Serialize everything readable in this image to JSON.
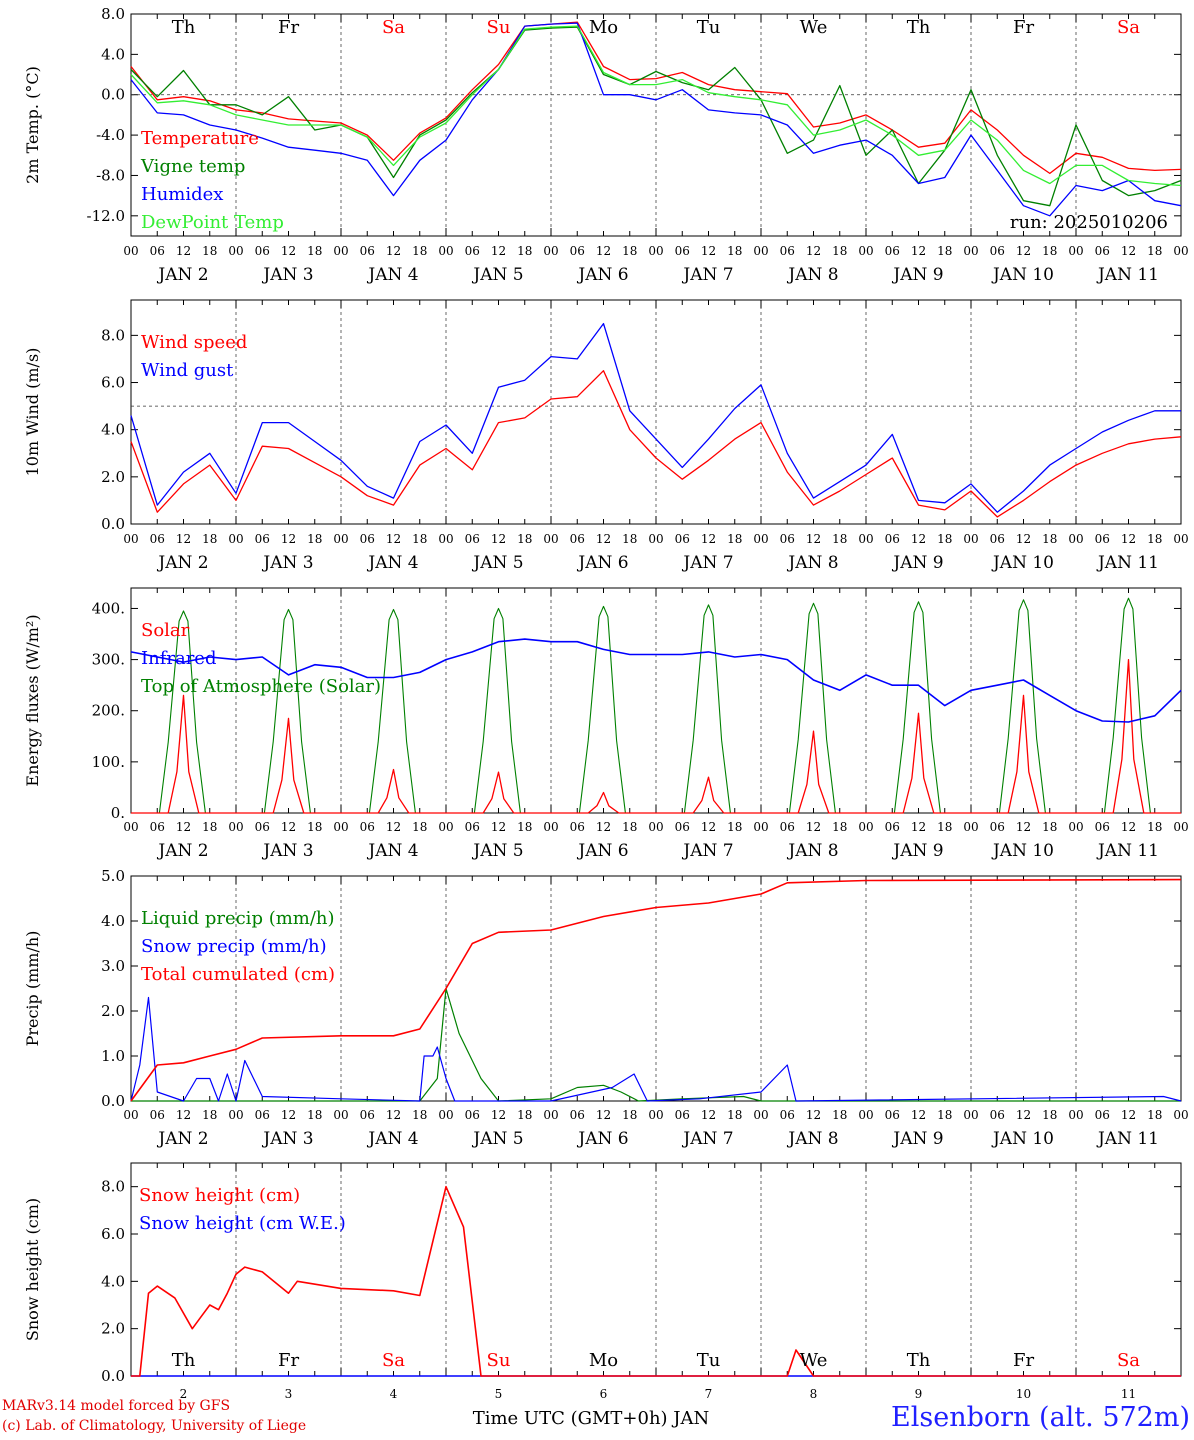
{
  "colors": {
    "red": "#ff0000",
    "green": "#008000",
    "blue": "#0000ff",
    "lightgreen": "#33ee33",
    "black": "#000000",
    "weekend": "#ff0000",
    "station": "#2020ff"
  },
  "chart_data": [
    {
      "type": "line",
      "ylabel": "2m Temp. (°C)",
      "ylim": [
        -14,
        8
      ],
      "yticks": [
        8,
        4,
        0,
        -4,
        -8,
        -12
      ],
      "ytick_labels": [
        "8.0",
        "4.0",
        "0.0",
        "-4.0",
        "-8.0",
        "-12.0"
      ],
      "reference_line": 0,
      "annotation": "run: 2025010206",
      "day_names": [
        "Th",
        "Fr",
        "Sa",
        "Su",
        "Mo",
        "Tu",
        "We",
        "Th",
        "Fr",
        "Sa"
      ],
      "hour_tick_labels": [
        "00",
        "06",
        "12",
        "18"
      ],
      "date_labels": [
        "JAN  2",
        "JAN  3",
        "JAN  4",
        "JAN  5",
        "JAN  6",
        "JAN  7",
        "JAN  8",
        "JAN  9",
        "JAN  10",
        "JAN  11"
      ],
      "x_hours_since_jan2_00utc": [
        0,
        6,
        12,
        18,
        24,
        30,
        36,
        42,
        48,
        54,
        60,
        66,
        72,
        78,
        84,
        90,
        96,
        102,
        108,
        114,
        120,
        126,
        132,
        138,
        144,
        150,
        156,
        162,
        168,
        174,
        180,
        186,
        192,
        198,
        204,
        210,
        216,
        222,
        228,
        234,
        240
      ],
      "series": [
        {
          "name": "Temperature",
          "color": "#ff0000",
          "values": [
            2.8,
            -0.5,
            -0.2,
            -0.6,
            -1.5,
            -1.8,
            -2.4,
            -2.6,
            -2.8,
            -4.0,
            -6.5,
            -3.8,
            -2.3,
            0.5,
            3.0,
            6.8,
            7.0,
            7.2,
            2.8,
            1.5,
            1.6,
            2.2,
            1.0,
            0.5,
            0.3,
            0.1,
            -3.2,
            -2.8,
            -2.0,
            -3.5,
            -5.2,
            -4.8,
            -1.5,
            -3.5,
            -6.0,
            -7.8,
            -5.8,
            -6.2,
            -7.3,
            -7.5,
            -7.4
          ]
        },
        {
          "name": "Vigne temp",
          "color": "#008000",
          "values": [
            2.5,
            -0.2,
            2.4,
            -1.0,
            -1.0,
            -2.0,
            -0.2,
            -3.5,
            -3.0,
            -4.2,
            -8.2,
            -4.0,
            -2.5,
            0.2,
            2.5,
            6.4,
            6.6,
            6.7,
            2.0,
            1.0,
            2.3,
            1.2,
            0.5,
            2.7,
            -0.5,
            -5.8,
            -4.5,
            0.9,
            -6.0,
            -3.5,
            -8.8,
            -5.5,
            0.5,
            -6.0,
            -10.5,
            -11.0,
            -3.0,
            -8.5,
            -10.0,
            -9.5,
            -8.5
          ]
        },
        {
          "name": "Humidex",
          "color": "#0000ff",
          "values": [
            1.5,
            -1.8,
            -2.0,
            -3.0,
            -3.5,
            -4.3,
            -5.2,
            -5.5,
            -5.8,
            -6.5,
            -10.0,
            -6.5,
            -4.5,
            -0.5,
            2.5,
            6.8,
            7.0,
            7.1,
            0.0,
            0.0,
            -0.5,
            0.5,
            -1.5,
            -1.8,
            -2.0,
            -3.0,
            -5.8,
            -5.0,
            -4.5,
            -6.0,
            -8.8,
            -8.2,
            -4.0,
            -7.5,
            -11.0,
            -12.0,
            -9.0,
            -9.5,
            -8.5,
            -10.5,
            -11.0
          ]
        },
        {
          "name": "DewPoint Temp",
          "color": "#33ee33",
          "values": [
            2.0,
            -0.8,
            -0.6,
            -1.0,
            -2.0,
            -2.5,
            -3.0,
            -3.0,
            -3.0,
            -4.2,
            -7.0,
            -4.2,
            -2.8,
            0.0,
            2.5,
            6.5,
            6.7,
            6.8,
            2.2,
            1.0,
            1.0,
            1.5,
            0.2,
            -0.2,
            -0.5,
            -1.0,
            -4.0,
            -3.5,
            -2.5,
            -4.0,
            -6.0,
            -5.5,
            -2.5,
            -4.5,
            -7.5,
            -8.8,
            -7.0,
            -7.0,
            -8.5,
            -8.8,
            -9.0
          ]
        }
      ]
    },
    {
      "type": "line",
      "ylabel": "10m Wind (m/s)",
      "ylim": [
        0,
        9.5
      ],
      "yticks": [
        0,
        2,
        4,
        6,
        8
      ],
      "ytick_labels": [
        "0.0",
        "2.0",
        "4.0",
        "6.0",
        "8.0"
      ],
      "reference_line": 5,
      "hour_tick_labels": [
        "00",
        "06",
        "12",
        "18"
      ],
      "date_labels": [
        "JAN  2",
        "JAN  3",
        "JAN  4",
        "JAN  5",
        "JAN  6",
        "JAN  7",
        "JAN  8",
        "JAN  9",
        "JAN  10",
        "JAN  11"
      ],
      "x_hours_since_jan2_00utc": [
        0,
        6,
        12,
        18,
        24,
        30,
        36,
        42,
        48,
        54,
        60,
        66,
        72,
        78,
        84,
        90,
        96,
        102,
        108,
        114,
        120,
        126,
        132,
        138,
        144,
        150,
        156,
        162,
        168,
        174,
        180,
        186,
        192,
        198,
        204,
        210,
        216,
        222,
        228,
        234,
        240
      ],
      "series": [
        {
          "name": "Wind speed",
          "color": "#ff0000",
          "values": [
            3.5,
            0.5,
            1.7,
            2.5,
            1.0,
            3.3,
            3.2,
            2.6,
            2.0,
            1.2,
            0.8,
            2.5,
            3.2,
            2.3,
            4.3,
            4.5,
            5.3,
            5.4,
            6.5,
            4.0,
            2.8,
            1.9,
            2.7,
            3.6,
            4.3,
            2.2,
            0.8,
            1.4,
            2.1,
            2.8,
            0.8,
            0.6,
            1.4,
            0.3,
            1.0,
            1.8,
            2.5,
            3.0,
            3.4,
            3.6,
            3.7
          ]
        },
        {
          "name": "Wind gust",
          "color": "#0000ff",
          "values": [
            4.6,
            0.8,
            2.2,
            3.0,
            1.3,
            4.3,
            4.3,
            3.5,
            2.7,
            1.6,
            1.1,
            3.5,
            4.2,
            3.0,
            5.8,
            6.1,
            7.1,
            7.0,
            8.5,
            4.8,
            3.6,
            2.4,
            3.6,
            4.9,
            5.9,
            3.0,
            1.1,
            1.8,
            2.5,
            3.8,
            1.0,
            0.9,
            1.7,
            0.5,
            1.4,
            2.5,
            3.2,
            3.9,
            4.4,
            4.8,
            4.8
          ]
        }
      ]
    },
    {
      "type": "line",
      "ylabel": "Energy fluxes (W/m²)",
      "ylim": [
        0,
        440
      ],
      "yticks": [
        0,
        100,
        200,
        300,
        400
      ],
      "ytick_labels": [
        "0.",
        "100.",
        "200.",
        "300.",
        "400."
      ],
      "hour_tick_labels": [
        "00",
        "06",
        "12",
        "18"
      ],
      "date_labels": [
        "JAN  2",
        "JAN  3",
        "JAN  4",
        "JAN  5",
        "JAN  6",
        "JAN  7",
        "JAN  8",
        "JAN  9",
        "JAN  10",
        "JAN  11"
      ],
      "solar_daily_peaks": [
        230,
        185,
        85,
        80,
        40,
        70,
        160,
        195,
        230,
        300
      ],
      "toa_daily_peaks": [
        395,
        398,
        398,
        400,
        404,
        407,
        410,
        413,
        417,
        420
      ],
      "infrared_x_hours": [
        0,
        6,
        12,
        18,
        24,
        30,
        36,
        42,
        48,
        54,
        60,
        66,
        72,
        78,
        84,
        90,
        96,
        102,
        108,
        114,
        120,
        126,
        132,
        138,
        144,
        150,
        156,
        162,
        168,
        174,
        180,
        186,
        192,
        198,
        204,
        210,
        216,
        222,
        228,
        234,
        240
      ],
      "series": [
        {
          "name": "Solar",
          "color": "#ff0000"
        },
        {
          "name": "Infrared",
          "color": "#0000ff",
          "values": [
            315,
            305,
            295,
            305,
            300,
            305,
            270,
            290,
            285,
            265,
            265,
            275,
            300,
            315,
            335,
            340,
            335,
            335,
            320,
            310,
            310,
            310,
            315,
            305,
            310,
            300,
            260,
            240,
            270,
            250,
            250,
            210,
            240,
            250,
            260,
            230,
            200,
            180,
            178,
            190,
            240
          ]
        },
        {
          "name": "Top of Atmosphere (Solar)",
          "color": "#008000"
        }
      ]
    },
    {
      "type": "line",
      "ylabel": "Precip (mm/h)",
      "ylim": [
        0,
        5
      ],
      "yticks": [
        0,
        1,
        2,
        3,
        4,
        5
      ],
      "ytick_labels": [
        "0.0",
        "1.0",
        "2.0",
        "3.0",
        "4.0",
        "5.0"
      ],
      "hour_tick_labels": [
        "00",
        "06",
        "12",
        "18"
      ],
      "date_labels": [
        "JAN  2",
        "JAN  3",
        "JAN  4",
        "JAN  5",
        "JAN  6",
        "JAN  7",
        "JAN  8",
        "JAN  9",
        "JAN  10",
        "JAN  11"
      ],
      "series": [
        {
          "name": "Liquid precip (mm/h)",
          "color": "#008000",
          "points": [
            [
              0,
              0
            ],
            [
              66,
              0
            ],
            [
              70,
              0.5
            ],
            [
              72,
              2.5
            ],
            [
              75,
              1.5
            ],
            [
              80,
              0.5
            ],
            [
              84,
              0
            ],
            [
              96,
              0.05
            ],
            [
              102,
              0.3
            ],
            [
              108,
              0.35
            ],
            [
              112,
              0.2
            ],
            [
              116,
              0
            ],
            [
              126,
              0.05
            ],
            [
              140,
              0.1
            ],
            [
              144,
              0
            ],
            [
              240,
              0
            ]
          ]
        },
        {
          "name": "Snow precip (mm/h)",
          "color": "#0000ff",
          "points": [
            [
              0,
              0
            ],
            [
              2,
              0.8
            ],
            [
              4,
              2.3
            ],
            [
              6,
              0.2
            ],
            [
              12,
              0
            ],
            [
              15,
              0.5
            ],
            [
              18,
              0.5
            ],
            [
              20,
              0
            ],
            [
              22,
              0.6
            ],
            [
              24,
              0
            ],
            [
              26,
              0.9
            ],
            [
              30,
              0.1
            ],
            [
              48,
              0.05
            ],
            [
              66,
              0
            ],
            [
              67,
              1.0
            ],
            [
              69,
              1.0
            ],
            [
              70,
              1.2
            ],
            [
              72,
              0.5
            ],
            [
              74,
              0
            ],
            [
              96,
              0
            ],
            [
              110,
              0.3
            ],
            [
              115,
              0.6
            ],
            [
              118,
              0
            ],
            [
              130,
              0.05
            ],
            [
              144,
              0.2
            ],
            [
              150,
              0.8
            ],
            [
              152,
              0
            ],
            [
              236,
              0.1
            ],
            [
              240,
              0
            ]
          ]
        },
        {
          "name": "Total cumulated (cm)",
          "color": "#ff0000",
          "points": [
            [
              0,
              0
            ],
            [
              6,
              0.8
            ],
            [
              12,
              0.85
            ],
            [
              18,
              1.0
            ],
            [
              24,
              1.15
            ],
            [
              30,
              1.4
            ],
            [
              48,
              1.45
            ],
            [
              60,
              1.45
            ],
            [
              66,
              1.6
            ],
            [
              72,
              2.5
            ],
            [
              78,
              3.5
            ],
            [
              84,
              3.75
            ],
            [
              96,
              3.8
            ],
            [
              108,
              4.1
            ],
            [
              120,
              4.3
            ],
            [
              132,
              4.4
            ],
            [
              144,
              4.6
            ],
            [
              150,
              4.85
            ],
            [
              168,
              4.9
            ],
            [
              240,
              4.92
            ]
          ]
        }
      ]
    },
    {
      "type": "line",
      "ylabel": "Snow height (cm)",
      "ylim": [
        0,
        9
      ],
      "yticks": [
        0,
        2,
        4,
        6,
        8
      ],
      "ytick_labels": [
        "0.0",
        "2.0",
        "4.0",
        "6.0",
        "8.0"
      ],
      "day_names": [
        "Th",
        "Fr",
        "Sa",
        "Su",
        "Mo",
        "Tu",
        "We",
        "Th",
        "Fr",
        "Sa"
      ],
      "day_numbers": [
        "2",
        "3",
        "4",
        "5",
        "6",
        "7",
        "8",
        "9",
        "10",
        "11"
      ],
      "xlabel": "Time UTC (GMT+0h) JAN",
      "series": [
        {
          "name": "Snow height (cm)",
          "color": "#ff0000",
          "points": [
            [
              0,
              0
            ],
            [
              2,
              0
            ],
            [
              4,
              3.5
            ],
            [
              6,
              3.8
            ],
            [
              10,
              3.3
            ],
            [
              14,
              2.0
            ],
            [
              16,
              2.5
            ],
            [
              18,
              3.0
            ],
            [
              20,
              2.8
            ],
            [
              22,
              3.5
            ],
            [
              24,
              4.3
            ],
            [
              26,
              4.6
            ],
            [
              30,
              4.4
            ],
            [
              36,
              3.5
            ],
            [
              38,
              4.0
            ],
            [
              48,
              3.7
            ],
            [
              60,
              3.6
            ],
            [
              66,
              3.4
            ],
            [
              72,
              8.0
            ],
            [
              76,
              6.3
            ],
            [
              80,
              0
            ],
            [
              150,
              0
            ],
            [
              152,
              1.1
            ],
            [
              156,
              0
            ],
            [
              240,
              0
            ]
          ]
        },
        {
          "name": "Snow height (cm W.E.)",
          "color": "#0000ff",
          "points": [
            [
              0,
              0
            ],
            [
              240,
              0
            ]
          ]
        }
      ]
    }
  ],
  "footer": {
    "credit_line1": "MARv3.14 model forced by GFS",
    "credit_line2": "(c) Lab. of Climatology, University of Liege",
    "station": "Elsenborn (alt. 572m)"
  }
}
